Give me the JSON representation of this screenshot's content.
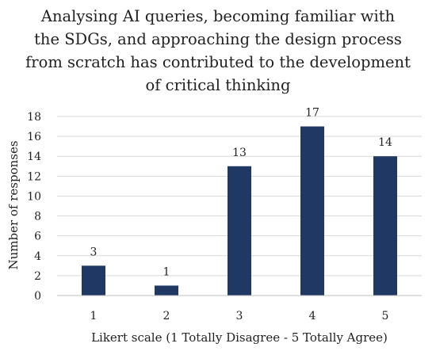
{
  "chart_data": {
    "type": "bar",
    "title_lines": [
      "Analysing AI queries, becoming familiar with",
      "the  SDGs, and approaching the design process",
      "from scratch has contributed to the development",
      "of critical thinking"
    ],
    "categories": [
      "1",
      "2",
      "3",
      "4",
      "5"
    ],
    "values": [
      3,
      1,
      13,
      17,
      14
    ],
    "data_labels": [
      "3",
      "1",
      "13",
      "17",
      "14"
    ],
    "xlabel": "Likert scale (1 Totally Disagree - 5 Totally Agree)",
    "ylabel": "Number of responses",
    "ylim": [
      0,
      18
    ],
    "yticks": [
      0,
      2,
      4,
      6,
      8,
      10,
      12,
      14,
      16,
      18
    ],
    "grid": true,
    "legend": "none",
    "bar_color": "#203864",
    "grid_color": "#d9d9d9"
  }
}
